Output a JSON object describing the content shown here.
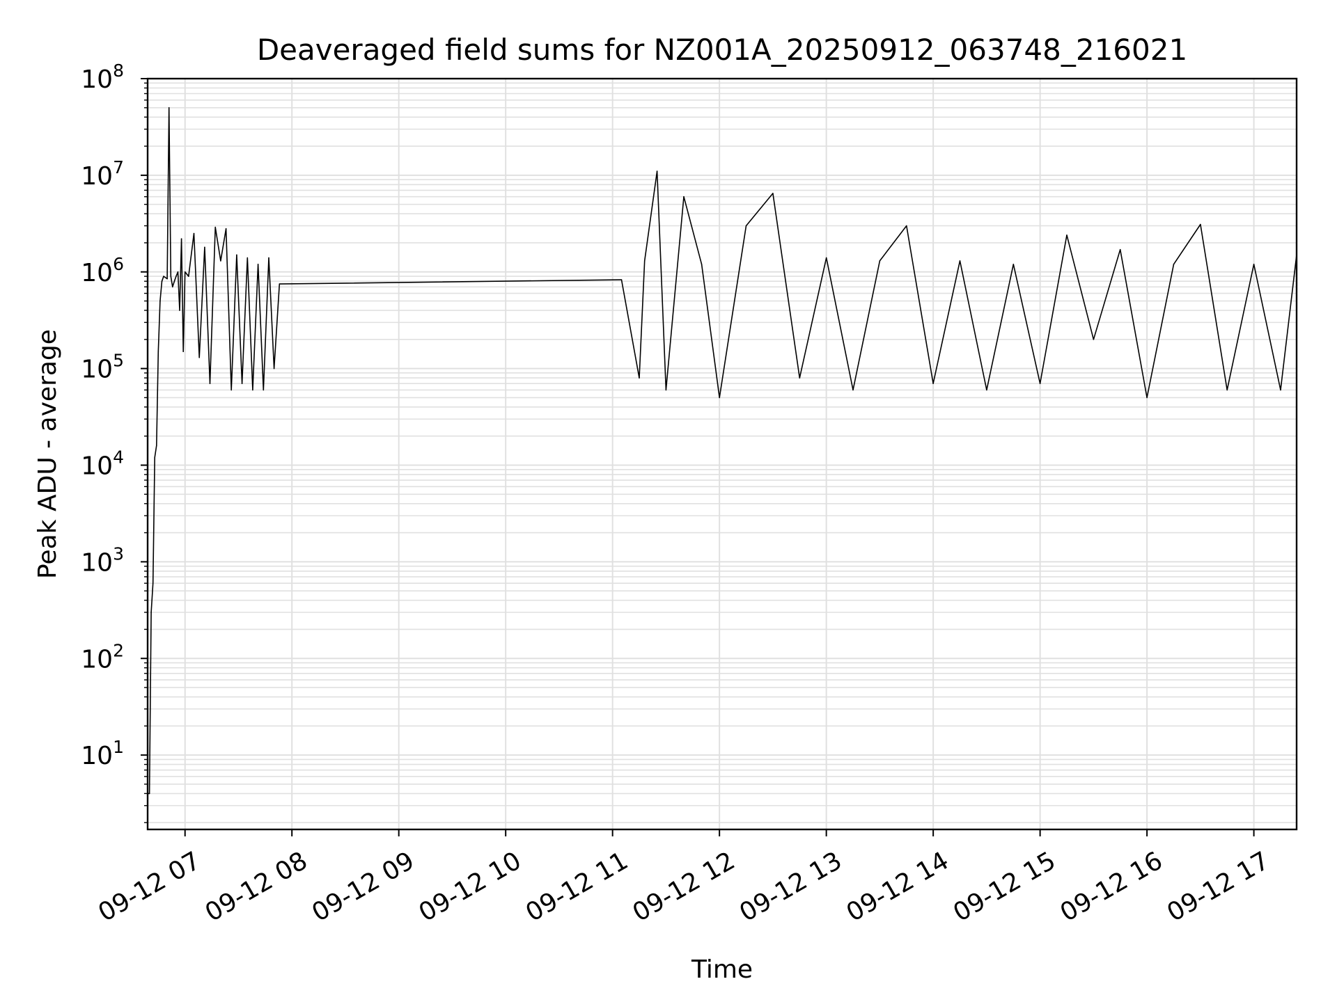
{
  "chart_data": {
    "type": "line",
    "title": "Deaveraged field sums for NZ001A_20250912_063748_216021",
    "xlabel": "Time",
    "ylabel": "Peak ADU - average",
    "yscale": "log",
    "ylim": [
      1.7,
      100000000
    ],
    "xlim": [
      "09-12 06:39",
      "09-12 17:24"
    ],
    "grid": true,
    "line_color": "#000000",
    "x_tick_labels": [
      "09-12 07",
      "09-12 08",
      "09-12 09",
      "09-12 10",
      "09-12 11",
      "09-12 12",
      "09-12 13",
      "09-12 14",
      "09-12 15",
      "09-12 16",
      "09-12 17"
    ],
    "y_tick_labels": [
      {
        "base": "10",
        "exp": "1"
      },
      {
        "base": "10",
        "exp": "2"
      },
      {
        "base": "10",
        "exp": "3"
      },
      {
        "base": "10",
        "exp": "4"
      },
      {
        "base": "10",
        "exp": "5"
      },
      {
        "base": "10",
        "exp": "6"
      },
      {
        "base": "10",
        "exp": "7"
      },
      {
        "base": "10",
        "exp": "8"
      }
    ],
    "series": [
      {
        "x": [
          "09-12 06:39",
          "09-12 06:40",
          "09-12 06:41",
          "09-12 06:42",
          "09-12 06:43",
          "09-12 06:44",
          "09-12 06:45",
          "09-12 06:46",
          "09-12 06:47",
          "09-12 06:48",
          "09-12 06:50",
          "09-12 06:51",
          "09-12 06:52",
          "09-12 06:53",
          "09-12 06:54",
          "09-12 06:55",
          "09-12 06:56",
          "09-12 06:57",
          "09-12 06:58",
          "09-12 06:59",
          "09-12 07:00",
          "09-12 07:02",
          "09-12 07:05",
          "09-12 07:08",
          "09-12 07:11",
          "09-12 07:14",
          "09-12 07:17",
          "09-12 07:20",
          "09-12 07:23",
          "09-12 07:26",
          "09-12 07:29",
          "09-12 07:32",
          "09-12 07:35",
          "09-12 07:38",
          "09-12 07:41",
          "09-12 07:44",
          "09-12 07:47",
          "09-12 07:50",
          "09-12 07:53",
          "09-12 11:05",
          "09-12 11:15",
          "09-12 11:18",
          "09-12 11:25",
          "09-12 11:30",
          "09-12 11:40",
          "09-12 11:50",
          "09-12 12:00",
          "09-12 12:15",
          "09-12 12:30",
          "09-12 12:45",
          "09-12 13:00",
          "09-12 13:15",
          "09-12 13:30",
          "09-12 13:45",
          "09-12 14:00",
          "09-12 14:15",
          "09-12 14:30",
          "09-12 14:45",
          "09-12 15:00",
          "09-12 15:15",
          "09-12 15:30",
          "09-12 15:45",
          "09-12 16:00",
          "09-12 16:15",
          "09-12 16:30",
          "09-12 16:45",
          "09-12 17:00",
          "09-12 17:15",
          "09-12 17:24"
        ],
        "y": [
          4,
          4,
          300,
          600,
          12000,
          16000,
          150000,
          500000,
          800000,
          900000,
          850000,
          50000000,
          900000,
          700000,
          800000,
          900000,
          1000000,
          400000,
          2200000,
          150000,
          1000000,
          900000,
          2500000,
          130000,
          1800000,
          70000,
          2900000,
          1300000,
          2800000,
          60000,
          1500000,
          70000,
          1400000,
          60000,
          1200000,
          60000,
          1400000,
          100000,
          750000,
          830000,
          80000,
          1300000,
          11000000,
          60000,
          6000000,
          1200000,
          50000,
          3000000,
          6500000,
          80000,
          1400000,
          60000,
          1300000,
          3000000,
          70000,
          1300000,
          60000,
          1200000,
          70000,
          2400000,
          200000,
          1700000,
          50000,
          1200000,
          3100000,
          60000,
          1200000,
          60000,
          1500000
        ]
      }
    ]
  }
}
